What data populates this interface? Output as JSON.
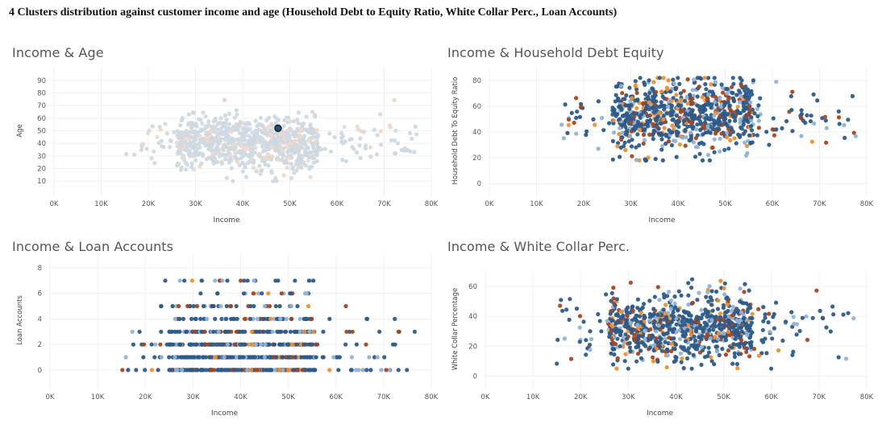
{
  "page": {
    "title": "4 Clusters distribution against customer income and age (Household Debt to Equity Ratio, White Collar Perc., Loan Accounts)"
  },
  "colors": {
    "c1": "#2c5b8a",
    "c2": "#8fb3d6",
    "c3": "#a8441f",
    "c4": "#f28e2b",
    "faded_main": "#cfd9e2",
    "faded_alt": "#efd9c8",
    "grid": "#f0f0f0",
    "text": "#555555"
  },
  "chart_data": [
    {
      "id": "income-age",
      "type": "scatter",
      "title": "Income & Age",
      "xlabel": "Income",
      "ylabel": "Age",
      "xlim": [
        0,
        80000
      ],
      "ylim": [
        5,
        95
      ],
      "xticks": [
        "0K",
        "10K",
        "20K",
        "30K",
        "40K",
        "50K",
        "60K",
        "70K",
        "80K"
      ],
      "yticks": [
        10,
        20,
        30,
        40,
        50,
        60,
        70,
        80,
        90
      ],
      "grid": true,
      "highlighted_point": {
        "x": 47500,
        "y": 52
      },
      "distribution": {
        "core_x": [
          26000,
          56000
        ],
        "core_y": [
          18,
          62
        ],
        "spread_x": [
          15000,
          78000
        ],
        "spread_y": [
          10,
          92
        ]
      }
    },
    {
      "id": "income-debt",
      "type": "scatter",
      "title": "Income & Household Debt Equity",
      "xlabel": "Income",
      "ylabel": "Household Debt To Equity Ratio",
      "xlim": [
        0,
        80000
      ],
      "ylim": [
        -3,
        85
      ],
      "xticks": [
        "0K",
        "10K",
        "20K",
        "30K",
        "40K",
        "50K",
        "60K",
        "70K",
        "80K"
      ],
      "yticks": [
        0,
        20,
        40,
        60,
        80
      ],
      "grid": true,
      "distribution": {
        "core_x": [
          26000,
          56000
        ],
        "core_y": [
          25,
          80
        ],
        "spread_x": [
          15000,
          78000
        ],
        "spread_y": [
          18,
          82
        ]
      }
    },
    {
      "id": "income-loans",
      "type": "scatter",
      "title": "Income & Loan Accounts",
      "xlabel": "Income",
      "ylabel": "Loan Accounts",
      "xlim": [
        0,
        80000
      ],
      "ylim": [
        -0.7,
        8.5
      ],
      "xticks": [
        "0K",
        "10K",
        "20K",
        "30K",
        "40K",
        "50K",
        "60K",
        "70K",
        "80K"
      ],
      "yticks": [
        0,
        2,
        4,
        6,
        8
      ],
      "grid": true,
      "distribution": {
        "levels": [
          0,
          1,
          2,
          3,
          4,
          5,
          6,
          7
        ],
        "spread_x": [
          15000,
          78000
        ]
      }
    },
    {
      "id": "income-white-collar",
      "type": "scatter",
      "title": "Income & White Collar Perc.",
      "xlabel": "Income",
      "ylabel": "White Collar Percentage",
      "xlim": [
        0,
        80000
      ],
      "ylim": [
        -3,
        66
      ],
      "xticks": [
        "0K",
        "10K",
        "20K",
        "30K",
        "40K",
        "50K",
        "60K",
        "70K",
        "80K"
      ],
      "yticks": [
        0,
        20,
        40,
        60
      ],
      "grid": true,
      "distribution": {
        "core_x": [
          26000,
          56000
        ],
        "core_y": [
          10,
          55
        ],
        "spread_x": [
          15000,
          78000
        ],
        "spread_y": [
          5,
          68
        ]
      }
    }
  ]
}
